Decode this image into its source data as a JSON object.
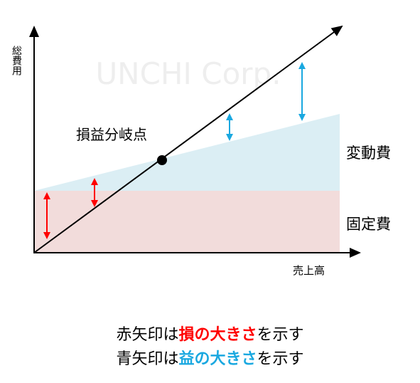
{
  "watermark": "UNCHI Corp.",
  "y_axis_label": "総費用",
  "x_axis_label": "売上高",
  "break_even_label": "損益分岐点",
  "variable_cost_label": "変動費",
  "fixed_cost_label": "固定費",
  "caption": [
    [
      "赤矢印は",
      "損の大きさ",
      "を示す"
    ],
    [
      "青矢印は",
      "益の大きさ",
      "を示す"
    ]
  ]
}
